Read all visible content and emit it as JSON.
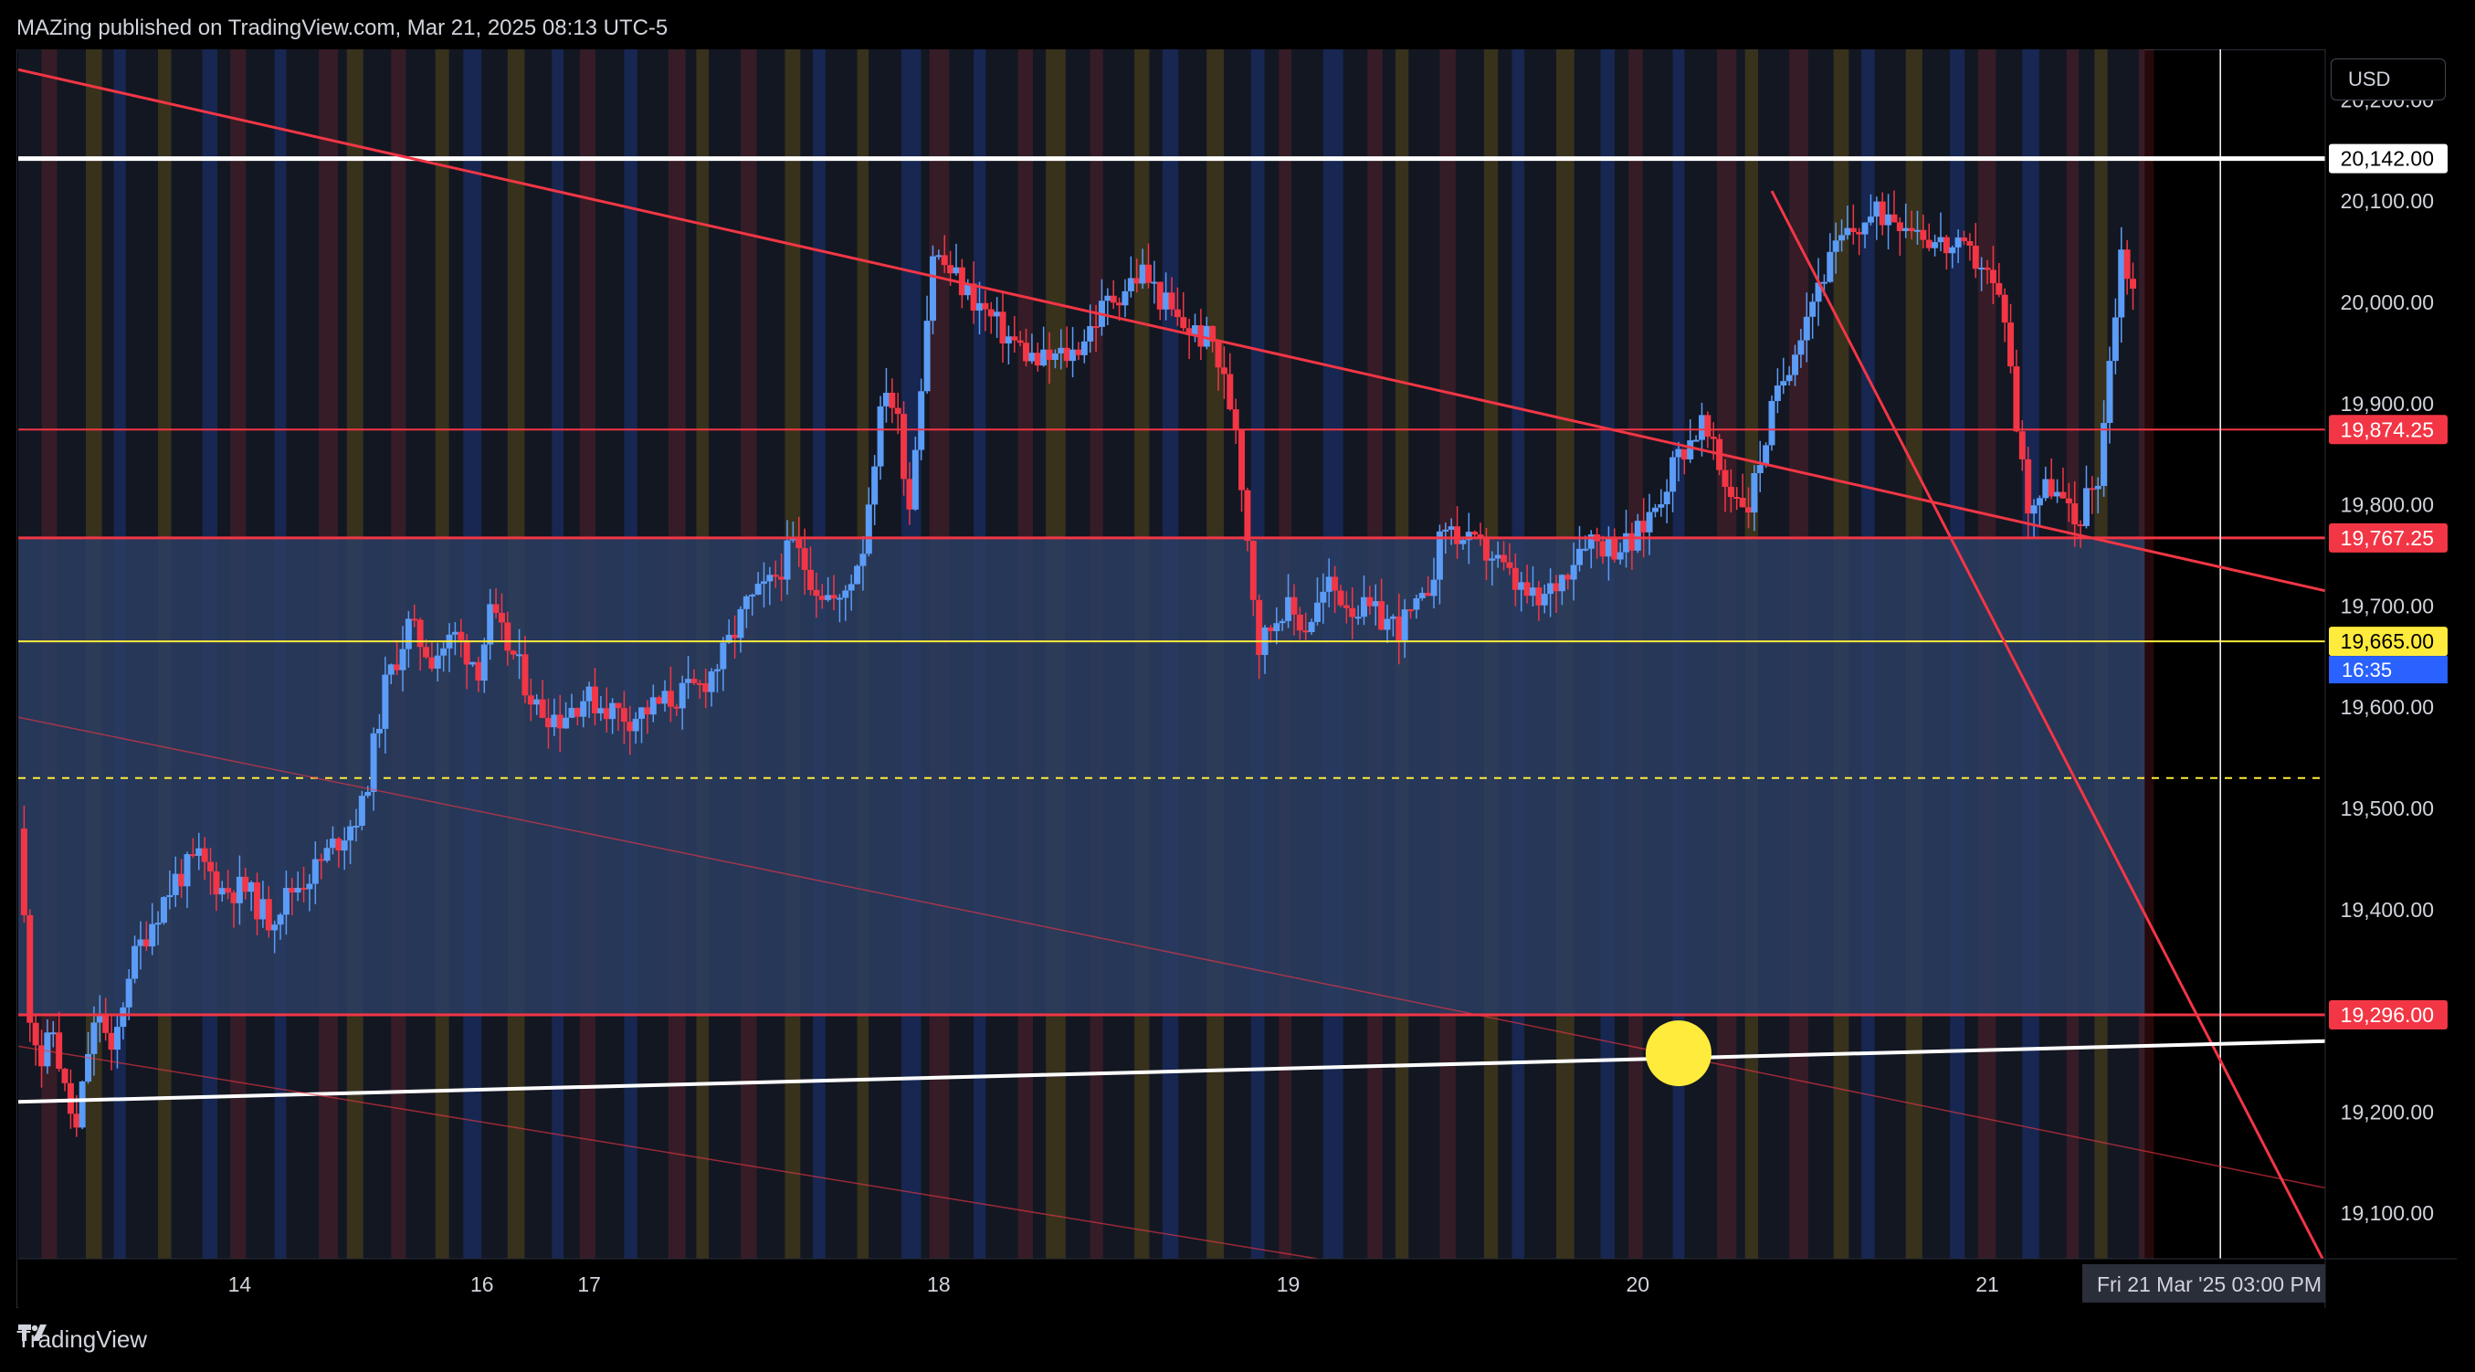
{
  "header": {
    "text": "MAZing published on TradingView.com, Mar 21, 2025 08:13 UTC-5"
  },
  "currency": "USD",
  "footer": {
    "brand": "TradingView",
    "logo_icon": "tradingview-logo-icon"
  },
  "colors": {
    "up": "#5b9cf6",
    "down": "#f23645",
    "trendline": "#f23645",
    "support_line": "#ffffff",
    "highlight_line": "#ffeb3b",
    "marker": "#ffeb3b",
    "zone": "#2a3d62"
  },
  "chart_data": {
    "type": "candlestick",
    "title": "",
    "xlabel": "",
    "ylabel": "",
    "ylim": [
      19055,
      20250
    ],
    "y_ticks": [
      20200,
      20100,
      20000,
      19900,
      19800,
      19700,
      19600,
      19500,
      19400,
      19300,
      19200,
      19100
    ],
    "y_tick_labels": [
      "20,200.00",
      "20,100.00",
      "20,000.00",
      "19,900.00",
      "19,800.00",
      "19,700.00",
      "19,600.00",
      "19,500.00",
      "19,400.00",
      "19,300.00",
      "19,200.00",
      "19,100.00"
    ],
    "x_ticks": [
      {
        "label": "14",
        "t": 2.25
      },
      {
        "label": "16",
        "t": 4.33
      },
      {
        "label": "17",
        "t": 5.25
      },
      {
        "label": "18",
        "t": 8.25
      },
      {
        "label": "19",
        "t": 11.25
      },
      {
        "label": "20",
        "t": 14.25
      },
      {
        "label": "21",
        "t": 17.25
      }
    ],
    "xlim": [
      0.35,
      20.15
    ],
    "crosshair": {
      "t": 19.25,
      "time_label": "Fri 21 Mar '25   03:00 PM"
    },
    "price_path": [
      [
        0.35,
        19480
      ],
      [
        0.45,
        19300
      ],
      [
        0.55,
        19250
      ],
      [
        0.65,
        19280
      ],
      [
        0.75,
        19220
      ],
      [
        0.85,
        19180
      ],
      [
        0.95,
        19260
      ],
      [
        1.05,
        19300
      ],
      [
        1.15,
        19250
      ],
      [
        1.3,
        19340
      ],
      [
        1.5,
        19390
      ],
      [
        1.7,
        19430
      ],
      [
        1.9,
        19450
      ],
      [
        2.1,
        19420
      ],
      [
        2.3,
        19420
      ],
      [
        2.5,
        19390
      ],
      [
        2.7,
        19420
      ],
      [
        2.9,
        19440
      ],
      [
        3.1,
        19470
      ],
      [
        3.3,
        19500
      ],
      [
        3.5,
        19620
      ],
      [
        3.7,
        19680
      ],
      [
        3.9,
        19650
      ],
      [
        4.1,
        19670
      ],
      [
        4.3,
        19640
      ],
      [
        4.4,
        19690
      ],
      [
        4.6,
        19650
      ],
      [
        4.8,
        19600
      ],
      [
        5.0,
        19590
      ],
      [
        5.2,
        19610
      ],
      [
        5.4,
        19600
      ],
      [
        5.6,
        19590
      ],
      [
        5.8,
        19600
      ],
      [
        6.0,
        19610
      ],
      [
        6.2,
        19620
      ],
      [
        6.4,
        19650
      ],
      [
        6.6,
        19700
      ],
      [
        6.8,
        19720
      ],
      [
        7.0,
        19760
      ],
      [
        7.2,
        19720
      ],
      [
        7.4,
        19700
      ],
      [
        7.6,
        19760
      ],
      [
        7.7,
        19850
      ],
      [
        7.8,
        19920
      ],
      [
        7.9,
        19880
      ],
      [
        8.0,
        19800
      ],
      [
        8.2,
        20050
      ],
      [
        8.5,
        20010
      ],
      [
        8.8,
        19970
      ],
      [
        9.1,
        19940
      ],
      [
        9.4,
        19950
      ],
      [
        9.7,
        20000
      ],
      [
        10.0,
        20030
      ],
      [
        10.3,
        19980
      ],
      [
        10.6,
        19960
      ],
      [
        10.8,
        19880
      ],
      [
        11.0,
        19660
      ],
      [
        11.2,
        19700
      ],
      [
        11.4,
        19680
      ],
      [
        11.6,
        19720
      ],
      [
        11.8,
        19700
      ],
      [
        12.0,
        19690
      ],
      [
        12.2,
        19680
      ],
      [
        12.4,
        19700
      ],
      [
        12.6,
        19780
      ],
      [
        12.8,
        19760
      ],
      [
        13.0,
        19750
      ],
      [
        13.2,
        19720
      ],
      [
        13.4,
        19700
      ],
      [
        13.6,
        19730
      ],
      [
        13.8,
        19770
      ],
      [
        14.0,
        19760
      ],
      [
        14.2,
        19760
      ],
      [
        14.4,
        19800
      ],
      [
        14.6,
        19850
      ],
      [
        14.8,
        19880
      ],
      [
        15.0,
        19820
      ],
      [
        15.2,
        19800
      ],
      [
        15.4,
        19890
      ],
      [
        15.6,
        19960
      ],
      [
        15.8,
        20020
      ],
      [
        16.0,
        20060
      ],
      [
        16.2,
        20080
      ],
      [
        16.4,
        20090
      ],
      [
        16.6,
        20080
      ],
      [
        16.8,
        20060
      ],
      [
        17.0,
        20050
      ],
      [
        17.2,
        20040
      ],
      [
        17.4,
        19990
      ],
      [
        17.5,
        19880
      ],
      [
        17.6,
        19800
      ],
      [
        17.8,
        19820
      ],
      [
        18.0,
        19780
      ],
      [
        18.2,
        19830
      ],
      [
        18.4,
        20050
      ],
      [
        18.6,
        19980
      ],
      [
        18.8,
        19900
      ],
      [
        19.0,
        19840
      ],
      [
        19.2,
        19820
      ],
      [
        19.4,
        19800
      ],
      [
        19.6,
        19860
      ],
      [
        19.8,
        19880
      ],
      [
        20.0,
        19900
      ],
      [
        20.15,
        19910
      ]
    ],
    "price_levels": [
      {
        "price": 20142,
        "label": "20,142.00",
        "color": "#ffffff",
        "style": "solid",
        "width": 5
      },
      {
        "price": 19874.25,
        "label": "19,874.25",
        "color": "#f23645",
        "style": "solid",
        "width": 2
      },
      {
        "price": 19767.25,
        "label": "19,767.25",
        "color": "#f23645",
        "style": "solid",
        "width": 3
      },
      {
        "price": 19665,
        "label": "19,665.00",
        "color": "#ffeb3b",
        "style": "solid",
        "width": 2
      },
      {
        "price": 19296,
        "label": "19,296.00",
        "color": "#f23645",
        "style": "solid",
        "width": 3
      }
    ],
    "trendlines": [
      {
        "from": [
          0.35,
          20230
        ],
        "to": [
          20.15,
          19715
        ],
        "color": "#f23645",
        "width": 3
      },
      {
        "from": [
          15.4,
          20110
        ],
        "to": [
          20.15,
          19050
        ],
        "color": "#f23645",
        "width": 3
      },
      {
        "from": [
          0.35,
          19210
        ],
        "to": [
          20.15,
          19270
        ],
        "color": "#ffffff",
        "width": 4
      }
    ],
    "zone": {
      "from": 19296,
      "to": 19767.25,
      "t_start": 0.35,
      "t_end": 18.6
    },
    "dashed_level": 19530,
    "marker": {
      "t": 14.6,
      "price": 19258
    },
    "last_price": {
      "label": "19,665.00",
      "countdown": "16:35"
    }
  }
}
